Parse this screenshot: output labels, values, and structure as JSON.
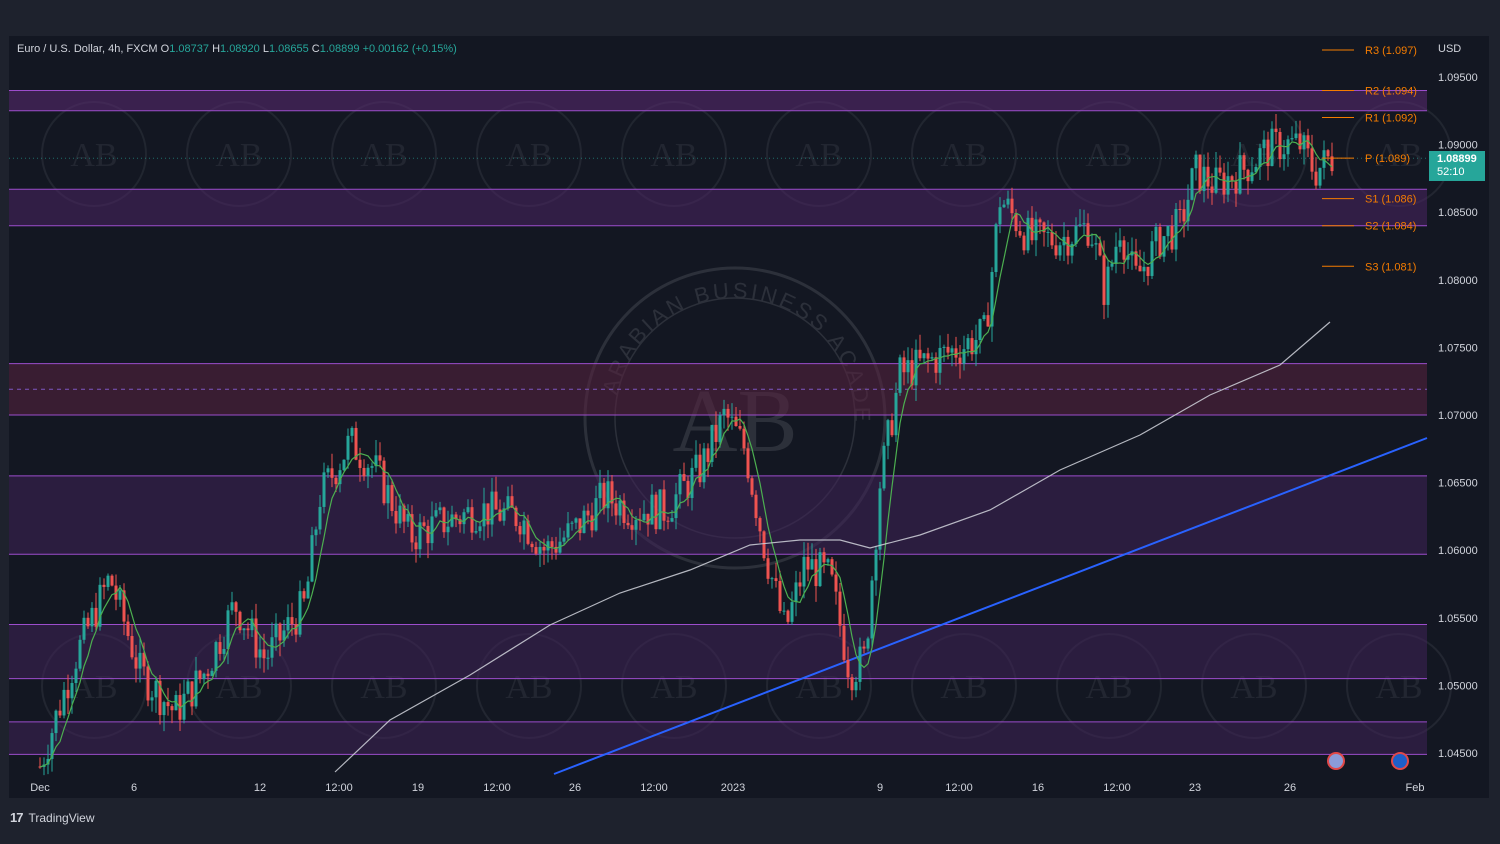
{
  "symbol_bar": {
    "symbol": "Euro / U.S. Dollar, 4h, FXCM",
    "o_label": "O",
    "o_value": "1.08737",
    "h_label": "H",
    "h_value": "1.08920",
    "l_label": "L",
    "l_value": "1.08655",
    "c_label": "C",
    "c_value": "1.08899",
    "change": "+0.00162 (+0.15%)"
  },
  "axis": {
    "currency": "USD",
    "price_ticks": [
      "1.09500",
      "1.09000",
      "1.08500",
      "1.08000",
      "1.07500",
      "1.07000",
      "1.06500",
      "1.06000",
      "1.05500",
      "1.05000",
      "1.04500"
    ],
    "time_ticks": [
      "Dec",
      "6",
      "12",
      "12:00",
      "19",
      "12:00",
      "26",
      "12:00",
      "2023",
      "9",
      "12:00",
      "16",
      "12:00",
      "23",
      "26",
      "Feb"
    ]
  },
  "current_price": {
    "value": "1.08899",
    "countdown": "52:10",
    "color": "#26a69a"
  },
  "pivots": [
    {
      "label": "R3 (1.097)",
      "level": 1.097
    },
    {
      "label": "R2 (1.094)",
      "level": 1.094
    },
    {
      "label": "R1 (1.092)",
      "level": 1.092
    },
    {
      "label": "P (1.089)",
      "level": 1.089
    },
    {
      "label": "S1 (1.086)",
      "level": 1.086
    },
    {
      "label": "S2 (1.084)",
      "level": 1.084
    },
    {
      "label": "S3 (1.081)",
      "level": 1.081
    }
  ],
  "zones": [
    {
      "top": 1.094,
      "bottom": 1.0925,
      "color": "#5b2a73"
    },
    {
      "top": 1.0867,
      "bottom": 1.084,
      "color": "#4a2463"
    },
    {
      "top": 1.0738,
      "bottom": 1.07,
      "color": "#5a2240"
    },
    {
      "top": 1.0655,
      "bottom": 1.0597,
      "color": "#3f2258"
    },
    {
      "top": 1.0545,
      "bottom": 1.0505,
      "color": "#3f2258"
    },
    {
      "top": 1.0473,
      "bottom": 1.0449,
      "color": "#3f2258"
    }
  ],
  "colors": {
    "up": "#26a69a",
    "down": "#ef5350",
    "ma_fast": "#4caf50",
    "ma_slow": "#d1d4dc",
    "trendline": "#2962ff",
    "pivot": "#f57c00"
  },
  "watermark": {
    "text": "ARABIAN BUSINESS ACADEMY",
    "mark": "AB"
  },
  "branding": {
    "name": "TradingView"
  }
}
